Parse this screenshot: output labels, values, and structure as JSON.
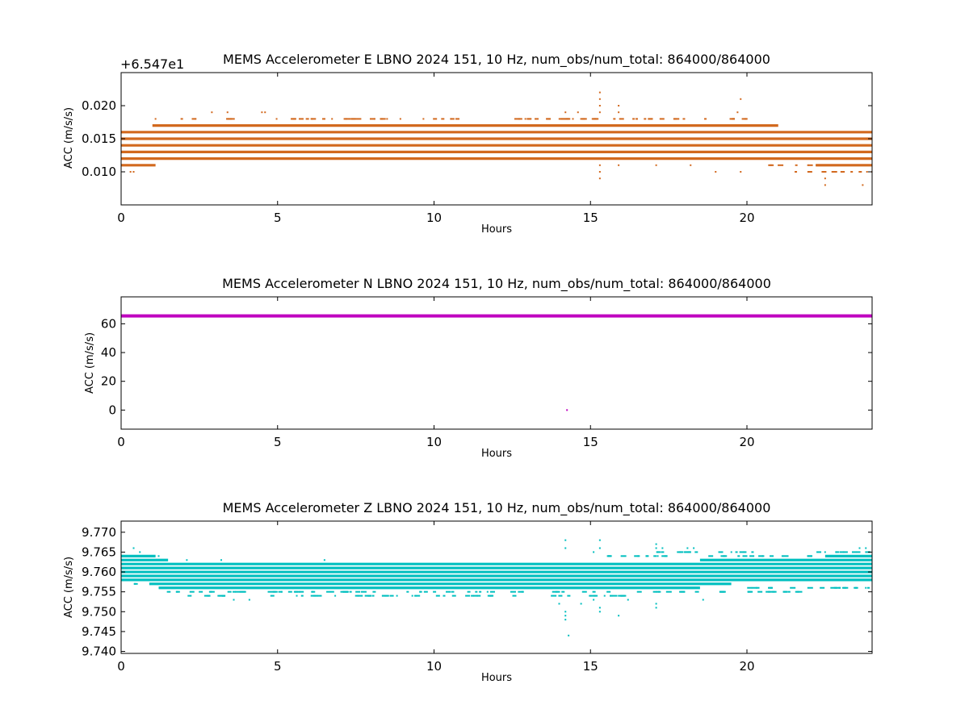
{
  "chart_data": [
    {
      "type": "scatter",
      "title": "MEMS Accelerometer E LBNO 2024 151, 10 Hz, num_obs/num_total: 864000/864000",
      "xlabel": "Hours",
      "ylabel": "ACC (m/s/s)",
      "offset_text": "+6.547e1",
      "offset_value": 65.47,
      "color": "#d2691e",
      "xlim": [
        0,
        24
      ],
      "ylim": [
        0.005,
        0.025
      ],
      "xticks": [
        0,
        5,
        10,
        15,
        20
      ],
      "xtick_labels": [
        "0",
        "5",
        "10",
        "15",
        "20"
      ],
      "yticks": [
        0.01,
        0.015,
        0.02
      ],
      "ytick_labels": [
        "0.010",
        "0.015",
        "0.020"
      ],
      "series": [
        {
          "bands": [
            {
              "y": 0.011,
              "x_range": [
                0,
                1.1
              ]
            },
            {
              "y": 0.012,
              "x_range": [
                0,
                24
              ]
            },
            {
              "y": 0.013,
              "x_range": [
                0,
                24
              ]
            },
            {
              "y": 0.014,
              "x_range": [
                0,
                24
              ]
            },
            {
              "y": 0.015,
              "x_range": [
                0,
                24
              ]
            },
            {
              "y": 0.016,
              "x_range": [
                0,
                24
              ]
            },
            {
              "y": 0.017,
              "x_range": [
                1.0,
                21.0
              ]
            },
            {
              "y": 0.011,
              "x_range": [
                22.2,
                24
              ]
            }
          ],
          "sparse_rows": [
            {
              "y": 0.018,
              "x_range": [
                1.8,
                20.0
              ]
            },
            {
              "y": 0.013,
              "x_range": [
                5.0,
                21.0
              ]
            },
            {
              "y": 0.012,
              "x_range": [
                1.2,
                5.0
              ]
            },
            {
              "y": 0.011,
              "x_range": [
                20.5,
                22.2
              ]
            },
            {
              "y": 0.01,
              "x_range": [
                21.5,
                24
              ]
            }
          ],
          "outliers": [
            [
              0.3,
              0.01
            ],
            [
              0.4,
              0.01
            ],
            [
              1.1,
              0.018
            ],
            [
              2.9,
              0.019
            ],
            [
              3.4,
              0.019
            ],
            [
              4.5,
              0.019
            ],
            [
              4.6,
              0.019
            ],
            [
              3.0,
              0.012
            ],
            [
              3.6,
              0.012
            ],
            [
              4.1,
              0.012
            ],
            [
              4.5,
              0.012
            ],
            [
              4.9,
              0.012
            ],
            [
              8.5,
              0.018
            ],
            [
              14.2,
              0.019
            ],
            [
              14.3,
              0.012
            ],
            [
              14.6,
              0.019
            ],
            [
              15.3,
              0.022
            ],
            [
              15.3,
              0.021
            ],
            [
              15.3,
              0.02
            ],
            [
              15.3,
              0.019
            ],
            [
              15.3,
              0.011
            ],
            [
              15.3,
              0.01
            ],
            [
              15.3,
              0.009
            ],
            [
              15.9,
              0.02
            ],
            [
              15.9,
              0.019
            ],
            [
              15.9,
              0.011
            ],
            [
              17.1,
              0.011
            ],
            [
              18.2,
              0.011
            ],
            [
              19.0,
              0.01
            ],
            [
              19.7,
              0.019
            ],
            [
              19.8,
              0.021
            ],
            [
              19.8,
              0.01
            ],
            [
              22.5,
              0.009
            ],
            [
              22.5,
              0.008
            ],
            [
              23.7,
              0.008
            ],
            [
              23.1,
              0.01
            ]
          ]
        }
      ]
    },
    {
      "type": "scatter",
      "title": "MEMS Accelerometer N LBNO 2024 151, 10 Hz, num_obs/num_total: 864000/864000",
      "xlabel": "Hours",
      "ylabel": "ACC (m/s/s)",
      "color": "#bf00bf",
      "xlim": [
        0,
        24
      ],
      "ylim": [
        -13.27,
        78.74
      ],
      "xticks": [
        0,
        5,
        10,
        15,
        20
      ],
      "xtick_labels": [
        "0",
        "5",
        "10",
        "15",
        "20"
      ],
      "yticks": [
        0,
        20,
        40,
        60
      ],
      "ytick_labels": [
        "0",
        "20",
        "40",
        "60"
      ],
      "series": [
        {
          "bands": [
            {
              "y": 65.49,
              "x_range": [
                0,
                24
              ]
            }
          ],
          "sparse_rows": [],
          "outliers": [
            [
              14.25,
              0
            ]
          ]
        }
      ]
    },
    {
      "type": "scatter",
      "title": "MEMS Accelerometer Z LBNO 2024 151, 10 Hz, num_obs/num_total: 864000/864000",
      "xlabel": "Hours",
      "ylabel": "ACC (m/s/s)",
      "color": "#00bfbf",
      "xlim": [
        0,
        24
      ],
      "ylim": [
        9.7395,
        9.7728
      ],
      "xticks": [
        0,
        5,
        10,
        15,
        20
      ],
      "xtick_labels": [
        "0",
        "5",
        "10",
        "15",
        "20"
      ],
      "yticks": [
        9.74,
        9.745,
        9.75,
        9.755,
        9.76,
        9.765,
        9.77
      ],
      "ytick_labels": [
        "9.740",
        "9.745",
        "9.750",
        "9.755",
        "9.760",
        "9.765",
        "9.770"
      ],
      "series": [
        {
          "bands": [
            {
              "y": 9.764,
              "x_range": [
                0,
                1.1
              ]
            },
            {
              "y": 9.763,
              "x_range": [
                0,
                1.5
              ]
            },
            {
              "y": 9.762,
              "x_range": [
                0,
                24
              ]
            },
            {
              "y": 9.761,
              "x_range": [
                0,
                24
              ]
            },
            {
              "y": 9.76,
              "x_range": [
                0,
                24
              ]
            },
            {
              "y": 9.759,
              "x_range": [
                0,
                24
              ]
            },
            {
              "y": 9.758,
              "x_range": [
                0,
                24
              ]
            },
            {
              "y": 9.757,
              "x_range": [
                0.9,
                19.5
              ]
            },
            {
              "y": 9.756,
              "x_range": [
                1.2,
                18.5
              ]
            },
            {
              "y": 9.763,
              "x_range": [
                18.5,
                24
              ]
            },
            {
              "y": 9.764,
              "x_range": [
                22.5,
                24
              ]
            }
          ],
          "sparse_rows": [
            {
              "y": 9.755,
              "x_range": [
                1.2,
                22.5
              ]
            },
            {
              "y": 9.754,
              "x_range": [
                2.0,
                16.5
              ]
            },
            {
              "y": 9.764,
              "x_range": [
                15.5,
                22.5
              ]
            },
            {
              "y": 9.765,
              "x_range": [
                17.0,
                24
              ]
            },
            {
              "y": 9.757,
              "x_range": [
                0,
                1.0
              ]
            },
            {
              "y": 9.756,
              "x_range": [
                20.0,
                24
              ]
            }
          ],
          "outliers": [
            [
              0.4,
              9.766
            ],
            [
              0.6,
              9.765
            ],
            [
              1.2,
              9.764
            ],
            [
              2.1,
              9.763
            ],
            [
              3.2,
              9.763
            ],
            [
              3.6,
              9.753
            ],
            [
              4.1,
              9.753
            ],
            [
              6.5,
              9.763
            ],
            [
              14.2,
              9.768
            ],
            [
              14.2,
              9.766
            ],
            [
              14.2,
              9.75
            ],
            [
              14.2,
              9.749
            ],
            [
              14.2,
              9.748
            ],
            [
              14.3,
              9.744
            ],
            [
              14.0,
              9.755
            ],
            [
              14.0,
              9.752
            ],
            [
              14.7,
              9.752
            ],
            [
              15.3,
              9.768
            ],
            [
              15.3,
              9.766
            ],
            [
              15.3,
              9.75
            ],
            [
              15.3,
              9.751
            ],
            [
              15.1,
              9.765
            ],
            [
              15.1,
              9.753
            ],
            [
              15.9,
              9.749
            ],
            [
              16.2,
              9.753
            ],
            [
              17.1,
              9.767
            ],
            [
              17.1,
              9.766
            ],
            [
              17.1,
              9.751
            ],
            [
              17.1,
              9.752
            ],
            [
              17.3,
              9.766
            ],
            [
              18.1,
              9.766
            ],
            [
              18.3,
              9.766
            ],
            [
              18.6,
              9.753
            ],
            [
              23.6,
              9.766
            ],
            [
              23.8,
              9.766
            ],
            [
              23.8,
              9.756
            ]
          ]
        }
      ]
    }
  ]
}
